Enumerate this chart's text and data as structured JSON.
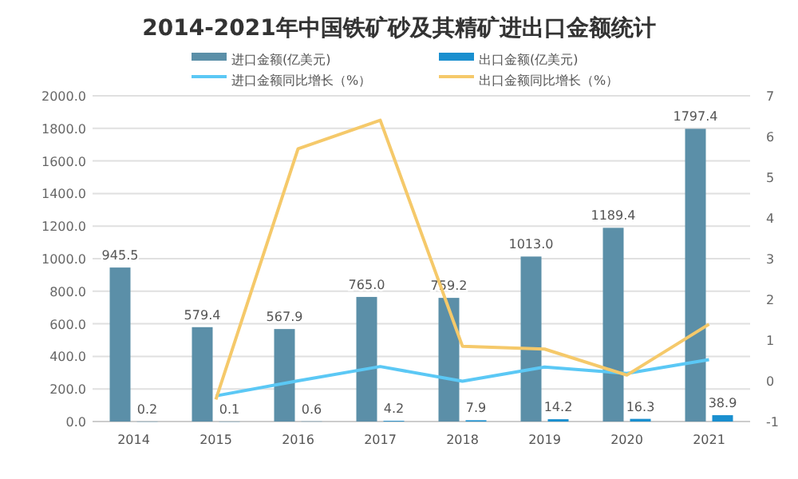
{
  "chart_data": {
    "type": "bar",
    "title": "2014-2021年中国铁矿砂及其精矿进出口金额统计",
    "categories": [
      "2014",
      "2015",
      "2016",
      "2017",
      "2018",
      "2019",
      "2020",
      "2021"
    ],
    "series": [
      {
        "name": "进口金额(亿美元)",
        "type": "bar",
        "color": "#5b8fa8",
        "values": [
          945.5,
          579.4,
          567.9,
          765.0,
          759.2,
          1013.0,
          1189.4,
          1797.4
        ],
        "value_labels": [
          "945.5",
          "579.4",
          "567.9",
          "765.0",
          "759.2",
          "1013.0",
          "1189.4",
          "1797.4"
        ]
      },
      {
        "name": "出口金额(亿美元)",
        "type": "bar",
        "color": "#1a8fcf",
        "values": [
          0.2,
          0.1,
          0.6,
          4.2,
          7.9,
          14.2,
          16.3,
          38.9
        ],
        "value_labels": [
          "0.2",
          "0.1",
          "0.6",
          "4.2",
          "7.9",
          "14.2",
          "16.3",
          "38.9"
        ]
      },
      {
        "name": "进口金额同比增长（%）",
        "type": "line",
        "axis": "y2",
        "color": "#5bc8f5",
        "values": [
          null,
          -0.37,
          0.0,
          0.35,
          -0.01,
          0.34,
          0.18,
          0.52
        ]
      },
      {
        "name": "出口金额同比增长（%）",
        "type": "line",
        "axis": "y2",
        "color": "#f5c96a",
        "values": [
          null,
          -0.46,
          5.7,
          6.4,
          0.85,
          0.78,
          0.14,
          1.39
        ]
      }
    ],
    "ylim": [
      0,
      2000
    ],
    "yticks": [
      {
        "value": 0,
        "label": "0.0"
      },
      {
        "value": 200,
        "label": "200.0"
      },
      {
        "value": 400,
        "label": "400.0"
      },
      {
        "value": 600,
        "label": "600.0"
      },
      {
        "value": 800,
        "label": "800.0"
      },
      {
        "value": 1000,
        "label": "1000.0"
      },
      {
        "value": 1200,
        "label": "1200.0"
      },
      {
        "value": 1400,
        "label": "1400.0"
      },
      {
        "value": 1600,
        "label": "1600.0"
      },
      {
        "value": 1800,
        "label": "1800.0"
      },
      {
        "value": 2000,
        "label": "2000.0"
      }
    ],
    "y2lim": [
      -1,
      7
    ],
    "y2ticks": [
      -1,
      0,
      1,
      2,
      3,
      4,
      5,
      6,
      7
    ],
    "grid": "y",
    "legend": "top"
  }
}
